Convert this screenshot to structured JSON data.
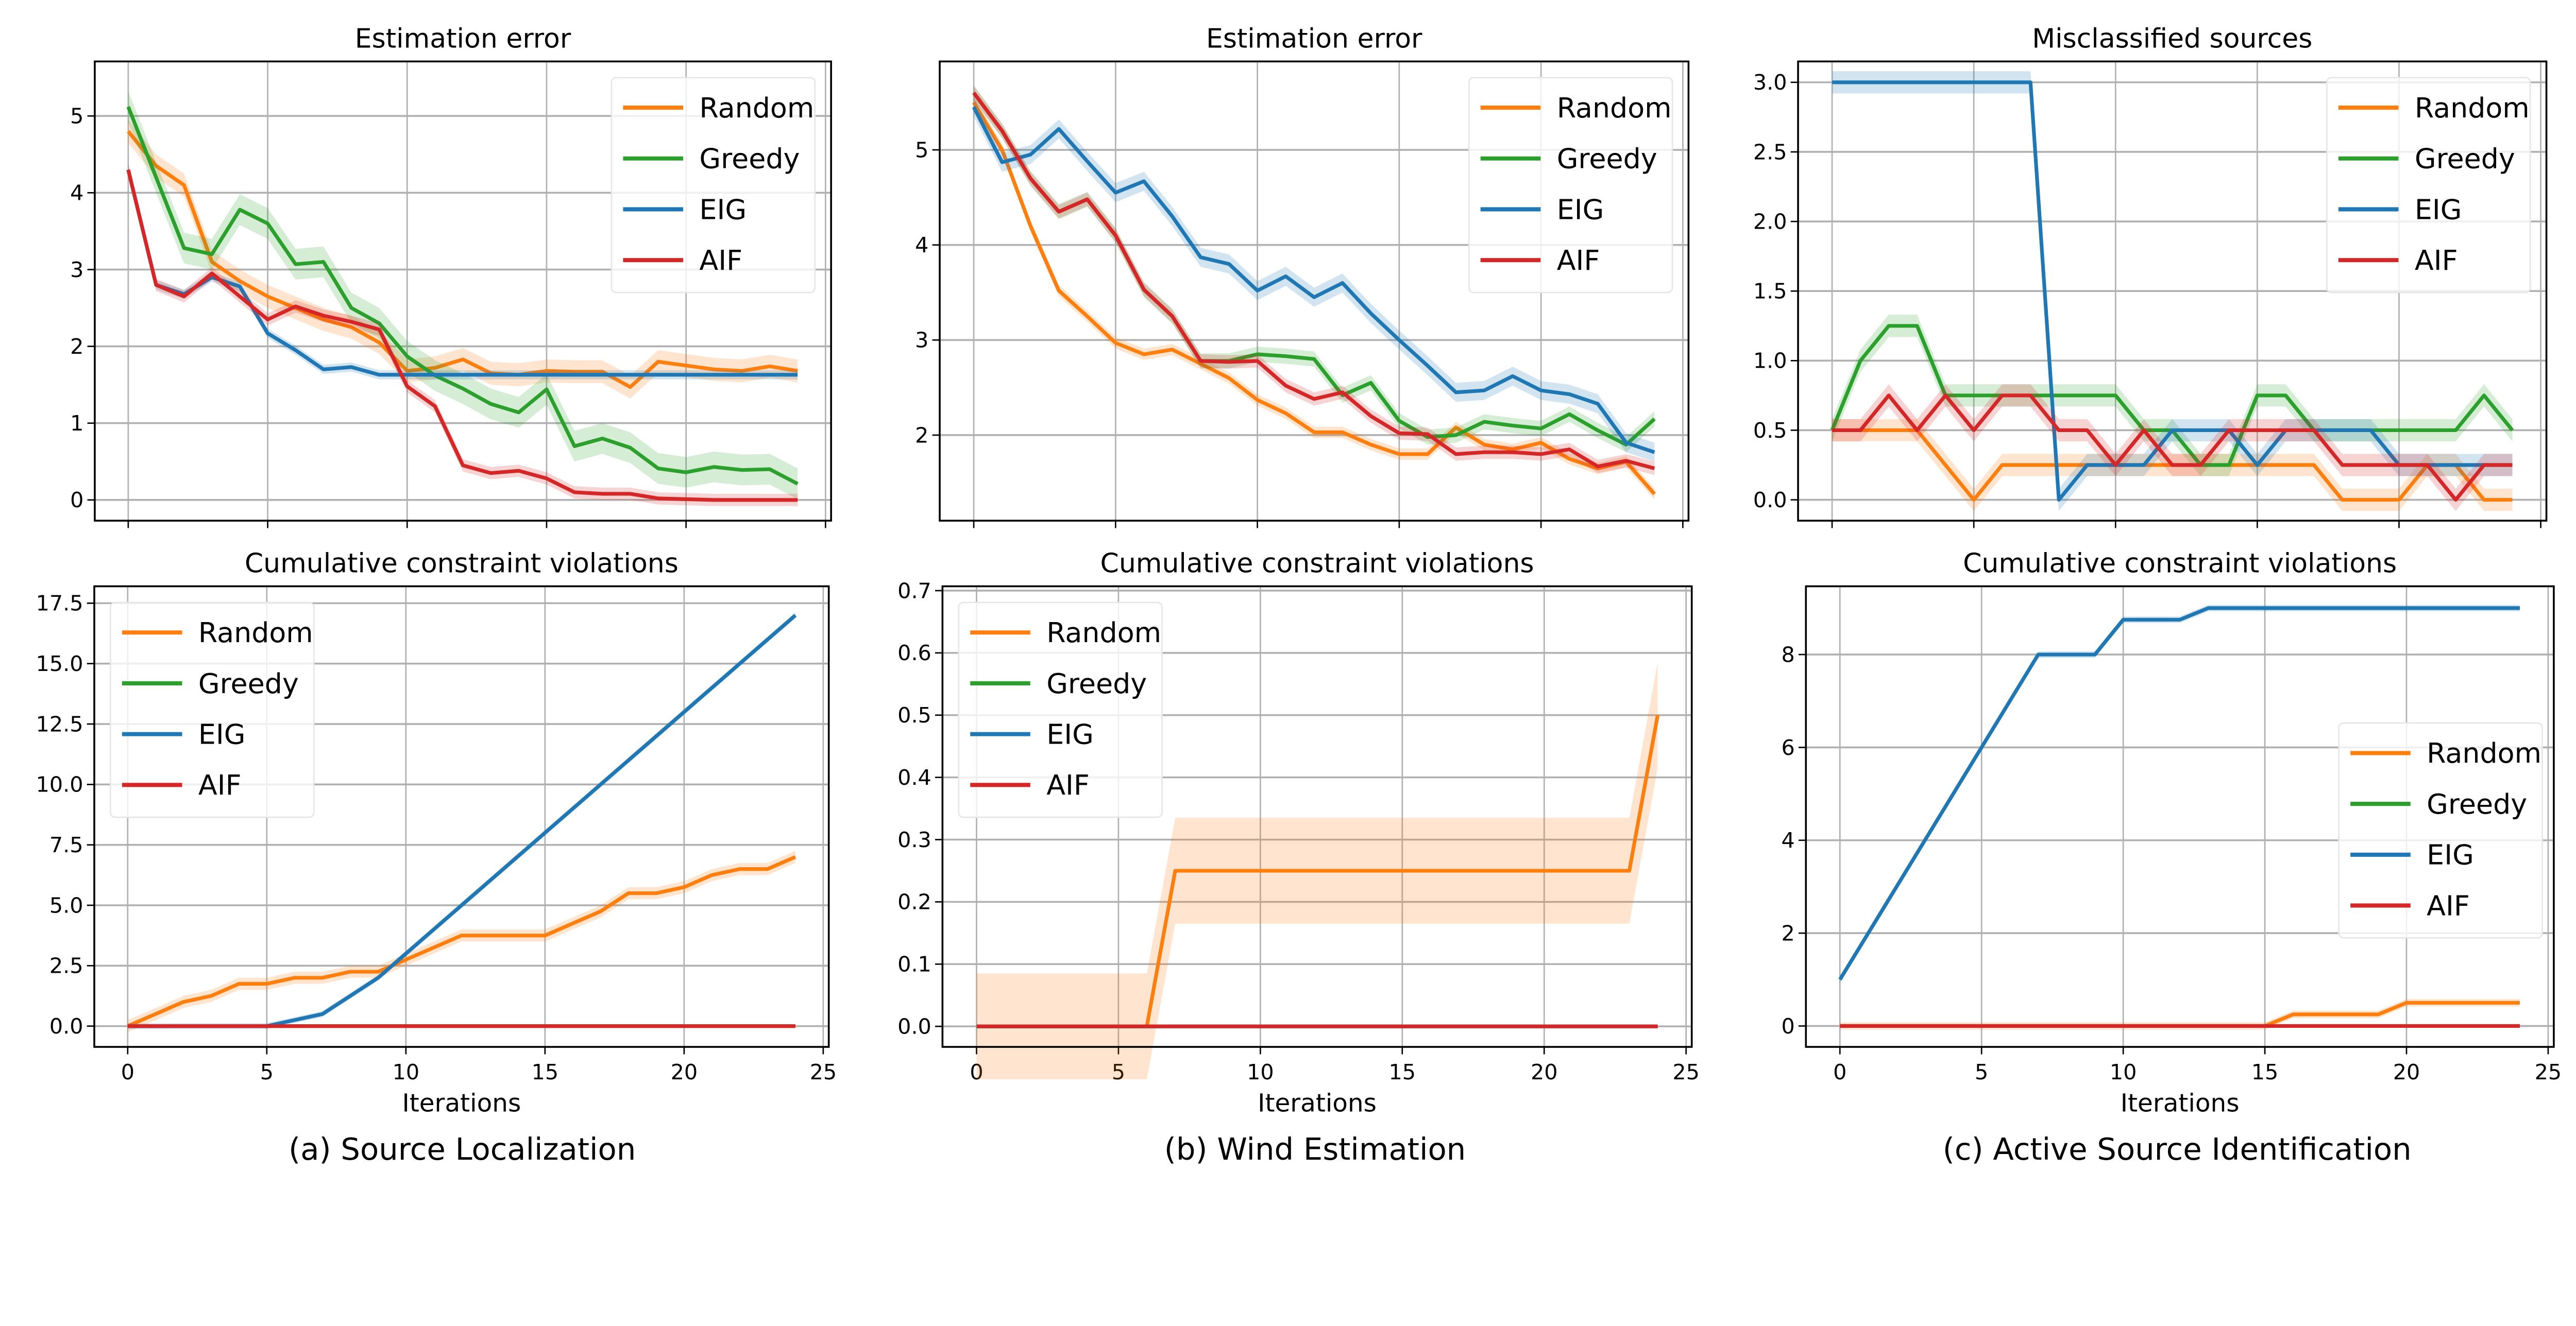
{
  "colors": {
    "Random": "#ff7f0e",
    "Greedy": "#2ca02c",
    "EIG": "#1f77b4",
    "AIF": "#d62728"
  },
  "captions": [
    "(a) Source Localization",
    "(b) Wind Estimation",
    "(c) Active Source Identification"
  ],
  "chart_data": [
    {
      "type": "line",
      "title": "Estimation error",
      "xlabel": "",
      "ylabel": "",
      "xlim": [
        -1.2,
        25.2
      ],
      "ylim": [
        -0.27,
        5.71
      ],
      "grid": true,
      "legend": "top-right",
      "xticks": [
        0,
        5,
        10,
        15,
        20,
        25
      ],
      "xtick_labels_shown": false,
      "yticks": [
        0,
        1,
        2,
        3,
        4,
        5
      ],
      "ytick_labels": [
        "0",
        "1",
        "2",
        "3",
        "4",
        "5"
      ],
      "x": [
        0,
        1,
        2,
        3,
        4,
        5,
        6,
        7,
        8,
        9,
        10,
        11,
        12,
        13,
        14,
        15,
        16,
        17,
        18,
        19,
        20,
        21,
        22,
        23,
        24
      ],
      "series": [
        {
          "name": "Random",
          "band": 0.15,
          "values": [
            4.8,
            4.35,
            4.1,
            3.1,
            2.85,
            2.65,
            2.5,
            2.35,
            2.25,
            2.05,
            1.68,
            1.72,
            1.83,
            1.65,
            1.63,
            1.68,
            1.67,
            1.67,
            1.47,
            1.8,
            1.75,
            1.7,
            1.68,
            1.74,
            1.68
          ]
        },
        {
          "name": "Greedy",
          "band": 0.2,
          "values": [
            5.12,
            4.2,
            3.28,
            3.2,
            3.78,
            3.6,
            3.07,
            3.1,
            2.5,
            2.3,
            1.87,
            1.62,
            1.45,
            1.25,
            1.14,
            1.44,
            0.7,
            0.8,
            0.68,
            0.41,
            0.36,
            0.43,
            0.39,
            0.4,
            0.21
          ]
        },
        {
          "name": "EIG",
          "band": 0.06,
          "values": [
            4.3,
            2.8,
            2.68,
            2.9,
            2.78,
            2.17,
            1.95,
            1.7,
            1.73,
            1.63,
            1.63,
            1.63,
            1.63,
            1.63,
            1.63,
            1.63,
            1.63,
            1.63,
            1.63,
            1.63,
            1.63,
            1.63,
            1.63,
            1.63,
            1.63
          ]
        },
        {
          "name": "AIF",
          "band": 0.08,
          "values": [
            4.3,
            2.8,
            2.65,
            2.95,
            2.65,
            2.35,
            2.52,
            2.4,
            2.32,
            2.22,
            1.48,
            1.22,
            0.45,
            0.35,
            0.38,
            0.28,
            0.1,
            0.08,
            0.08,
            0.02,
            0.01,
            0,
            0,
            0,
            0
          ]
        }
      ]
    },
    {
      "type": "line",
      "title": "Estimation error",
      "xlabel": "",
      "ylabel": "",
      "xlim": [
        -1.2,
        25.2
      ],
      "ylim": [
        1.1,
        5.93
      ],
      "grid": true,
      "legend": "top-right",
      "xticks": [
        0,
        5,
        10,
        15,
        20,
        25
      ],
      "xtick_labels_shown": false,
      "yticks": [
        2,
        3,
        4,
        5
      ],
      "ytick_labels": [
        "2",
        "3",
        "4",
        "5"
      ],
      "x": [
        0,
        1,
        2,
        3,
        4,
        5,
        6,
        7,
        8,
        9,
        10,
        11,
        12,
        13,
        14,
        15,
        16,
        17,
        18,
        19,
        20,
        21,
        22,
        23,
        24
      ],
      "series": [
        {
          "name": "Random",
          "band": 0.06,
          "values": [
            5.5,
            5.0,
            4.2,
            3.52,
            3.25,
            2.97,
            2.85,
            2.9,
            2.75,
            2.6,
            2.37,
            2.23,
            2.03,
            2.03,
            1.9,
            1.8,
            1.8,
            2.08,
            1.9,
            1.85,
            1.92,
            1.75,
            1.65,
            1.72,
            1.38
          ]
        },
        {
          "name": "Greedy",
          "band": 0.08,
          "values": [
            5.6,
            5.2,
            4.7,
            4.35,
            4.48,
            4.1,
            3.53,
            3.25,
            2.78,
            2.78,
            2.85,
            2.83,
            2.8,
            2.42,
            2.55,
            2.15,
            1.98,
            2.0,
            2.14,
            2.1,
            2.07,
            2.22,
            2.05,
            1.9,
            2.17
          ]
        },
        {
          "name": "EIG",
          "band": 0.1,
          "values": [
            5.45,
            4.87,
            4.95,
            5.22,
            4.88,
            4.55,
            4.67,
            4.3,
            3.87,
            3.8,
            3.52,
            3.67,
            3.45,
            3.6,
            3.28,
            3.0,
            2.73,
            2.45,
            2.47,
            2.62,
            2.47,
            2.43,
            2.33,
            1.92,
            1.82
          ]
        },
        {
          "name": "AIF",
          "band": 0.07,
          "values": [
            5.6,
            5.2,
            4.7,
            4.35,
            4.48,
            4.1,
            3.53,
            3.25,
            2.78,
            2.77,
            2.78,
            2.52,
            2.38,
            2.45,
            2.2,
            2.02,
            2.01,
            1.8,
            1.82,
            1.82,
            1.8,
            1.85,
            1.67,
            1.73,
            1.65
          ]
        }
      ]
    },
    {
      "type": "line",
      "title": "Misclassified sources",
      "xlabel": "",
      "ylabel": "",
      "xlim": [
        -1.2,
        25.2
      ],
      "ylim": [
        -0.15,
        3.15
      ],
      "grid": true,
      "legend": "top-right",
      "xticks": [
        0,
        5,
        10,
        15,
        20,
        25
      ],
      "xtick_labels_shown": false,
      "yticks": [
        0,
        0.5,
        1,
        1.5,
        2,
        2.5,
        3
      ],
      "ytick_labels": [
        "0.0",
        "0.5",
        "1.0",
        "1.5",
        "2.0",
        "2.5",
        "3.0"
      ],
      "x": [
        0,
        1,
        2,
        3,
        4,
        5,
        6,
        7,
        8,
        9,
        10,
        11,
        12,
        13,
        14,
        15,
        16,
        17,
        18,
        19,
        20,
        21,
        22,
        23,
        24
      ],
      "series": [
        {
          "name": "Random",
          "band": 0.08,
          "values": [
            0.5,
            0.5,
            0.5,
            0.5,
            0.25,
            0,
            0.25,
            0.25,
            0.25,
            0.25,
            0.25,
            0.25,
            0.25,
            0.25,
            0.25,
            0.25,
            0.25,
            0.25,
            0,
            0,
            0,
            0.25,
            0.25,
            0,
            0
          ]
        },
        {
          "name": "Greedy",
          "band": 0.08,
          "values": [
            0.5,
            1.0,
            1.25,
            1.25,
            0.75,
            0.75,
            0.75,
            0.75,
            0.75,
            0.75,
            0.75,
            0.5,
            0.5,
            0.25,
            0.25,
            0.75,
            0.75,
            0.5,
            0.5,
            0.5,
            0.5,
            0.5,
            0.5,
            0.75,
            0.5
          ]
        },
        {
          "name": "EIG",
          "band": 0.08,
          "values": [
            3,
            3,
            3,
            3,
            3,
            3,
            3,
            3,
            0,
            0.25,
            0.25,
            0.25,
            0.5,
            0.5,
            0.5,
            0.25,
            0.5,
            0.5,
            0.5,
            0.5,
            0.25,
            0.25,
            0.25,
            0.25,
            0.25
          ]
        },
        {
          "name": "AIF",
          "band": 0.08,
          "values": [
            0.5,
            0.5,
            0.75,
            0.5,
            0.75,
            0.5,
            0.75,
            0.75,
            0.5,
            0.5,
            0.25,
            0.5,
            0.25,
            0.25,
            0.5,
            0.5,
            0.5,
            0.5,
            0.25,
            0.25,
            0.25,
            0.25,
            0,
            0.25,
            0.25
          ]
        }
      ]
    },
    {
      "type": "line",
      "title": "Cumulative constraint violations",
      "xlabel": "Iterations",
      "ylabel": "",
      "xlim": [
        -1.2,
        25.2
      ],
      "ylim": [
        -0.86,
        18.2
      ],
      "grid": true,
      "legend": "top-left",
      "xticks": [
        0,
        5,
        10,
        15,
        20,
        25
      ],
      "xtick_labels": [
        "0",
        "5",
        "10",
        "15",
        "20",
        "25"
      ],
      "yticks": [
        0,
        2.5,
        5,
        7.5,
        10,
        12.5,
        15,
        17.5
      ],
      "ytick_labels": [
        "0.0",
        "2.5",
        "5.0",
        "7.5",
        "10.0",
        "12.5",
        "15.0",
        "17.5"
      ],
      "x": [
        0,
        1,
        2,
        3,
        4,
        5,
        6,
        7,
        8,
        9,
        10,
        11,
        12,
        13,
        14,
        15,
        16,
        17,
        18,
        19,
        20,
        21,
        22,
        23,
        24
      ],
      "series": [
        {
          "name": "Random",
          "band": 0.25,
          "values": [
            0,
            0.5,
            1,
            1.25,
            1.75,
            1.75,
            2,
            2,
            2.25,
            2.25,
            2.75,
            3.25,
            3.75,
            3.75,
            3.75,
            3.75,
            4.25,
            4.75,
            5.5,
            5.5,
            5.75,
            6.25,
            6.5,
            6.5,
            7
          ]
        },
        {
          "name": "Greedy",
          "band": 0,
          "values": [
            0,
            0,
            0,
            0,
            0,
            0,
            0,
            0,
            0,
            0,
            0,
            0,
            0,
            0,
            0,
            0,
            0,
            0,
            0,
            0,
            0,
            0,
            0,
            0,
            0
          ]
        },
        {
          "name": "EIG",
          "band": 0.12,
          "values": [
            0,
            0,
            0,
            0,
            0,
            0,
            0.25,
            0.5,
            1.25,
            2,
            3,
            4,
            5,
            6,
            7,
            8,
            9,
            10,
            11,
            12,
            13,
            14,
            15,
            16,
            17
          ]
        },
        {
          "name": "AIF",
          "band": 0,
          "values": [
            0,
            0,
            0,
            0,
            0,
            0,
            0,
            0,
            0,
            0,
            0,
            0,
            0,
            0,
            0,
            0,
            0,
            0,
            0,
            0,
            0,
            0,
            0,
            0,
            0
          ]
        }
      ]
    },
    {
      "type": "line",
      "title": "Cumulative constraint violations",
      "xlabel": "Iterations",
      "ylabel": "",
      "xlim": [
        -1.2,
        25.2
      ],
      "ylim": [
        -0.033,
        0.707
      ],
      "grid": true,
      "legend": "top-left",
      "xticks": [
        0,
        5,
        10,
        15,
        20,
        25
      ],
      "xtick_labels": [
        "0",
        "5",
        "10",
        "15",
        "20",
        "25"
      ],
      "yticks": [
        0,
        0.1,
        0.2,
        0.3,
        0.4,
        0.5,
        0.6,
        0.7
      ],
      "ytick_labels": [
        "0.0",
        "0.1",
        "0.2",
        "0.3",
        "0.4",
        "0.5",
        "0.6",
        "0.7"
      ],
      "x": [
        0,
        1,
        2,
        3,
        4,
        5,
        6,
        7,
        8,
        9,
        10,
        11,
        12,
        13,
        14,
        15,
        16,
        17,
        18,
        19,
        20,
        21,
        22,
        23,
        24
      ],
      "series": [
        {
          "name": "Random",
          "band": 0.085,
          "values": [
            0,
            0,
            0,
            0,
            0,
            0,
            0,
            0.25,
            0.25,
            0.25,
            0.25,
            0.25,
            0.25,
            0.25,
            0.25,
            0.25,
            0.25,
            0.25,
            0.25,
            0.25,
            0.25,
            0.25,
            0.25,
            0.25,
            0.5
          ]
        },
        {
          "name": "Greedy",
          "band": 0,
          "values": [
            0,
            0,
            0,
            0,
            0,
            0,
            0,
            0,
            0,
            0,
            0,
            0,
            0,
            0,
            0,
            0,
            0,
            0,
            0,
            0,
            0,
            0,
            0,
            0,
            0
          ]
        },
        {
          "name": "EIG",
          "band": 0,
          "values": [
            0,
            0,
            0,
            0,
            0,
            0,
            0,
            0,
            0,
            0,
            0,
            0,
            0,
            0,
            0,
            0,
            0,
            0,
            0,
            0,
            0,
            0,
            0,
            0,
            0
          ]
        },
        {
          "name": "AIF",
          "band": 0,
          "values": [
            0,
            0,
            0,
            0,
            0,
            0,
            0,
            0,
            0,
            0,
            0,
            0,
            0,
            0,
            0,
            0,
            0,
            0,
            0,
            0,
            0,
            0,
            0,
            0,
            0
          ]
        }
      ]
    },
    {
      "type": "line",
      "title": "Cumulative constraint violations",
      "xlabel": "Iterations",
      "ylabel": "",
      "xlim": [
        -1.2,
        25.2
      ],
      "ylim": [
        -0.45,
        9.47
      ],
      "grid": true,
      "legend": "center-right",
      "xticks": [
        0,
        5,
        10,
        15,
        20,
        25
      ],
      "xtick_labels": [
        "0",
        "5",
        "10",
        "15",
        "20",
        "25"
      ],
      "yticks": [
        0,
        2,
        4,
        6,
        8
      ],
      "ytick_labels": [
        "0",
        "2",
        "4",
        "6",
        "8"
      ],
      "x": [
        0,
        1,
        2,
        3,
        4,
        5,
        6,
        7,
        8,
        9,
        10,
        11,
        12,
        13,
        14,
        15,
        16,
        17,
        18,
        19,
        20,
        21,
        22,
        23,
        24
      ],
      "series": [
        {
          "name": "Random",
          "band": 0.08,
          "values": [
            0,
            0,
            0,
            0,
            0,
            0,
            0,
            0,
            0,
            0,
            0,
            0,
            0,
            0,
            0,
            0,
            0.25,
            0.25,
            0.25,
            0.25,
            0.5,
            0.5,
            0.5,
            0.5,
            0.5
          ]
        },
        {
          "name": "Greedy",
          "band": 0,
          "values": [
            0,
            0,
            0,
            0,
            0,
            0,
            0,
            0,
            0,
            0,
            0,
            0,
            0,
            0,
            0,
            0,
            0,
            0,
            0,
            0,
            0,
            0,
            0,
            0,
            0
          ]
        },
        {
          "name": "EIG",
          "band": 0.07,
          "values": [
            1,
            2,
            3,
            4,
            5,
            6,
            7,
            8,
            8,
            8,
            8.75,
            8.75,
            8.75,
            9,
            9,
            9,
            9,
            9,
            9,
            9,
            9,
            9,
            9,
            9,
            9
          ]
        },
        {
          "name": "AIF",
          "band": 0,
          "values": [
            0,
            0,
            0,
            0,
            0,
            0,
            0,
            0,
            0,
            0,
            0,
            0,
            0,
            0,
            0,
            0,
            0,
            0,
            0,
            0,
            0,
            0,
            0,
            0,
            0
          ]
        }
      ]
    }
  ]
}
